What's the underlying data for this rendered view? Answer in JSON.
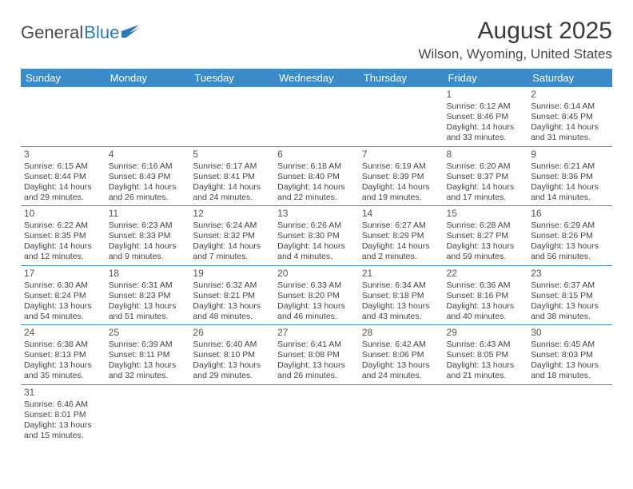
{
  "logo": {
    "part1": "General",
    "part2": "Blue"
  },
  "title": "August 2025",
  "location": "Wilson, Wyoming, United States",
  "header_bg": "#3b8bc9",
  "border_color": "#3b8bc9",
  "days_of_week": [
    "Sunday",
    "Monday",
    "Tuesday",
    "Wednesday",
    "Thursday",
    "Friday",
    "Saturday"
  ],
  "weeks": [
    [
      null,
      null,
      null,
      null,
      null,
      {
        "n": "1",
        "sr": "Sunrise: 6:12 AM",
        "ss": "Sunset: 8:46 PM",
        "d1": "Daylight: 14 hours",
        "d2": "and 33 minutes."
      },
      {
        "n": "2",
        "sr": "Sunrise: 6:14 AM",
        "ss": "Sunset: 8:45 PM",
        "d1": "Daylight: 14 hours",
        "d2": "and 31 minutes."
      }
    ],
    [
      {
        "n": "3",
        "sr": "Sunrise: 6:15 AM",
        "ss": "Sunset: 8:44 PM",
        "d1": "Daylight: 14 hours",
        "d2": "and 29 minutes."
      },
      {
        "n": "4",
        "sr": "Sunrise: 6:16 AM",
        "ss": "Sunset: 8:43 PM",
        "d1": "Daylight: 14 hours",
        "d2": "and 26 minutes."
      },
      {
        "n": "5",
        "sr": "Sunrise: 6:17 AM",
        "ss": "Sunset: 8:41 PM",
        "d1": "Daylight: 14 hours",
        "d2": "and 24 minutes."
      },
      {
        "n": "6",
        "sr": "Sunrise: 6:18 AM",
        "ss": "Sunset: 8:40 PM",
        "d1": "Daylight: 14 hours",
        "d2": "and 22 minutes."
      },
      {
        "n": "7",
        "sr": "Sunrise: 6:19 AM",
        "ss": "Sunset: 8:39 PM",
        "d1": "Daylight: 14 hours",
        "d2": "and 19 minutes."
      },
      {
        "n": "8",
        "sr": "Sunrise: 6:20 AM",
        "ss": "Sunset: 8:37 PM",
        "d1": "Daylight: 14 hours",
        "d2": "and 17 minutes."
      },
      {
        "n": "9",
        "sr": "Sunrise: 6:21 AM",
        "ss": "Sunset: 8:36 PM",
        "d1": "Daylight: 14 hours",
        "d2": "and 14 minutes."
      }
    ],
    [
      {
        "n": "10",
        "sr": "Sunrise: 6:22 AM",
        "ss": "Sunset: 8:35 PM",
        "d1": "Daylight: 14 hours",
        "d2": "and 12 minutes."
      },
      {
        "n": "11",
        "sr": "Sunrise: 6:23 AM",
        "ss": "Sunset: 8:33 PM",
        "d1": "Daylight: 14 hours",
        "d2": "and 9 minutes."
      },
      {
        "n": "12",
        "sr": "Sunrise: 6:24 AM",
        "ss": "Sunset: 8:32 PM",
        "d1": "Daylight: 14 hours",
        "d2": "and 7 minutes."
      },
      {
        "n": "13",
        "sr": "Sunrise: 6:26 AM",
        "ss": "Sunset: 8:30 PM",
        "d1": "Daylight: 14 hours",
        "d2": "and 4 minutes."
      },
      {
        "n": "14",
        "sr": "Sunrise: 6:27 AM",
        "ss": "Sunset: 8:29 PM",
        "d1": "Daylight: 14 hours",
        "d2": "and 2 minutes."
      },
      {
        "n": "15",
        "sr": "Sunrise: 6:28 AM",
        "ss": "Sunset: 8:27 PM",
        "d1": "Daylight: 13 hours",
        "d2": "and 59 minutes."
      },
      {
        "n": "16",
        "sr": "Sunrise: 6:29 AM",
        "ss": "Sunset: 8:26 PM",
        "d1": "Daylight: 13 hours",
        "d2": "and 56 minutes."
      }
    ],
    [
      {
        "n": "17",
        "sr": "Sunrise: 6:30 AM",
        "ss": "Sunset: 8:24 PM",
        "d1": "Daylight: 13 hours",
        "d2": "and 54 minutes."
      },
      {
        "n": "18",
        "sr": "Sunrise: 6:31 AM",
        "ss": "Sunset: 8:23 PM",
        "d1": "Daylight: 13 hours",
        "d2": "and 51 minutes."
      },
      {
        "n": "19",
        "sr": "Sunrise: 6:32 AM",
        "ss": "Sunset: 8:21 PM",
        "d1": "Daylight: 13 hours",
        "d2": "and 48 minutes."
      },
      {
        "n": "20",
        "sr": "Sunrise: 6:33 AM",
        "ss": "Sunset: 8:20 PM",
        "d1": "Daylight: 13 hours",
        "d2": "and 46 minutes."
      },
      {
        "n": "21",
        "sr": "Sunrise: 6:34 AM",
        "ss": "Sunset: 8:18 PM",
        "d1": "Daylight: 13 hours",
        "d2": "and 43 minutes."
      },
      {
        "n": "22",
        "sr": "Sunrise: 6:36 AM",
        "ss": "Sunset: 8:16 PM",
        "d1": "Daylight: 13 hours",
        "d2": "and 40 minutes."
      },
      {
        "n": "23",
        "sr": "Sunrise: 6:37 AM",
        "ss": "Sunset: 8:15 PM",
        "d1": "Daylight: 13 hours",
        "d2": "and 38 minutes."
      }
    ],
    [
      {
        "n": "24",
        "sr": "Sunrise: 6:38 AM",
        "ss": "Sunset: 8:13 PM",
        "d1": "Daylight: 13 hours",
        "d2": "and 35 minutes."
      },
      {
        "n": "25",
        "sr": "Sunrise: 6:39 AM",
        "ss": "Sunset: 8:11 PM",
        "d1": "Daylight: 13 hours",
        "d2": "and 32 minutes."
      },
      {
        "n": "26",
        "sr": "Sunrise: 6:40 AM",
        "ss": "Sunset: 8:10 PM",
        "d1": "Daylight: 13 hours",
        "d2": "and 29 minutes."
      },
      {
        "n": "27",
        "sr": "Sunrise: 6:41 AM",
        "ss": "Sunset: 8:08 PM",
        "d1": "Daylight: 13 hours",
        "d2": "and 26 minutes."
      },
      {
        "n": "28",
        "sr": "Sunrise: 6:42 AM",
        "ss": "Sunset: 8:06 PM",
        "d1": "Daylight: 13 hours",
        "d2": "and 24 minutes."
      },
      {
        "n": "29",
        "sr": "Sunrise: 6:43 AM",
        "ss": "Sunset: 8:05 PM",
        "d1": "Daylight: 13 hours",
        "d2": "and 21 minutes."
      },
      {
        "n": "30",
        "sr": "Sunrise: 6:45 AM",
        "ss": "Sunset: 8:03 PM",
        "d1": "Daylight: 13 hours",
        "d2": "and 18 minutes."
      }
    ],
    [
      {
        "n": "31",
        "sr": "Sunrise: 6:46 AM",
        "ss": "Sunset: 8:01 PM",
        "d1": "Daylight: 13 hours",
        "d2": "and 15 minutes."
      },
      null,
      null,
      null,
      null,
      null,
      null
    ]
  ]
}
